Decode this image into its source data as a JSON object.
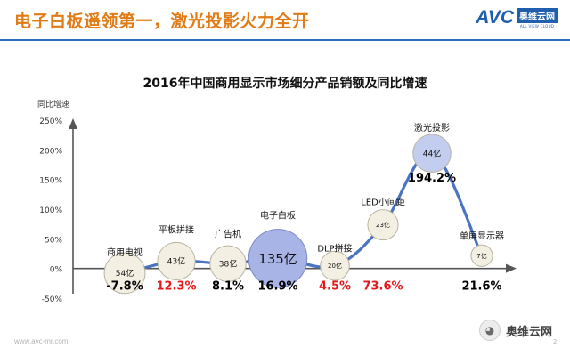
{
  "header": {
    "title": "电子白板遥领第一，激光投影火力全开"
  },
  "logo": {
    "abbr": "AVC",
    "cn": "奥维云网",
    "en": "ALL VIEW CLOUD"
  },
  "footer": {
    "url": "www.avc-mr.com",
    "page_number": "2",
    "watermark": "奥维云网",
    "watermark_icon": "wechat-icon"
  },
  "colors": {
    "title": "#e07b15",
    "rule": "#2c6fb6",
    "line": "#4a74c2",
    "negative_growth": "#000000",
    "highlight_growth": "#e31a1c"
  },
  "chart_data": {
    "type": "line",
    "title": "2016年中国商用显示市场细分产品销额及同比增速",
    "ylabel": "同比增速",
    "xlabel": "",
    "y_unit": "%",
    "ylim": [
      -50,
      250
    ],
    "yticks": [
      "250%",
      "200%",
      "150%",
      "100%",
      "50%",
      "0%",
      "-50%"
    ],
    "yticks_values": [
      250,
      200,
      150,
      100,
      50,
      0,
      -50
    ],
    "grid": false,
    "categories": [
      "商用电视",
      "平板拼接",
      "广告机",
      "电子白板",
      "DLP拼接",
      "LED小间距",
      "激光投影",
      "单屏显示器"
    ],
    "series": [
      {
        "values": [
          -7.8,
          12.3,
          8.1,
          16.9,
          4.5,
          73.6,
          194.2,
          21.6
        ],
        "labels": [
          "-7.8%",
          "12.3%",
          "8.1%",
          "16.9%",
          "4.5%",
          "73.6%",
          "194.2%",
          "21.6%"
        ],
        "label_colors": [
          "#000000",
          "#e31a1c",
          "#000000",
          "#000000",
          "#e31a1c",
          "#e31a1c",
          "#000000",
          "#000000"
        ]
      }
    ],
    "sales_label": [
      "54亿",
      "43亿",
      "38亿",
      "135亿",
      "20亿",
      "23亿",
      "44亿",
      "7亿"
    ],
    "sales_value": [
      54,
      43,
      38,
      135,
      20,
      23,
      44,
      7
    ],
    "sales_unit": "亿"
  }
}
